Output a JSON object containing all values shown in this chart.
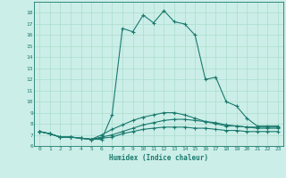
{
  "xlabel": "Humidex (Indice chaleur)",
  "ylabel": "",
  "bg_color": "#cceee8",
  "grid_color": "#aaddcc",
  "line_color": "#1a7a6e",
  "xlim": [
    -0.5,
    23.5
  ],
  "ylim": [
    6,
    19
  ],
  "xticks": [
    0,
    1,
    2,
    3,
    4,
    5,
    6,
    7,
    8,
    9,
    10,
    11,
    12,
    13,
    14,
    15,
    16,
    17,
    18,
    19,
    20,
    21,
    22,
    23
  ],
  "yticks": [
    6,
    7,
    8,
    9,
    10,
    11,
    12,
    13,
    14,
    15,
    16,
    17,
    18
  ],
  "lines": [
    {
      "x": [
        0,
        1,
        2,
        3,
        4,
        5,
        6,
        7,
        8,
        9,
        10,
        11,
        12,
        13,
        14,
        15,
        16,
        17,
        18,
        19,
        20,
        21,
        22,
        23
      ],
      "y": [
        7.3,
        7.1,
        6.8,
        6.8,
        6.7,
        6.6,
        6.6,
        8.8,
        16.6,
        16.3,
        17.8,
        17.1,
        18.2,
        17.2,
        17.0,
        16.0,
        12.0,
        12.2,
        10.0,
        9.6,
        8.5,
        7.8,
        7.8,
        7.8
      ]
    },
    {
      "x": [
        0,
        1,
        2,
        3,
        4,
        5,
        6,
        7,
        8,
        9,
        10,
        11,
        12,
        13,
        14,
        15,
        16,
        17,
        18,
        19,
        20,
        21,
        22,
        23
      ],
      "y": [
        7.3,
        7.1,
        6.8,
        6.8,
        6.7,
        6.6,
        7.0,
        7.5,
        7.9,
        8.3,
        8.6,
        8.8,
        9.0,
        9.0,
        8.8,
        8.5,
        8.2,
        8.0,
        7.8,
        7.8,
        7.7,
        7.7,
        7.7,
        7.7
      ]
    },
    {
      "x": [
        0,
        1,
        2,
        3,
        4,
        5,
        6,
        7,
        8,
        9,
        10,
        11,
        12,
        13,
        14,
        15,
        16,
        17,
        18,
        19,
        20,
        21,
        22,
        23
      ],
      "y": [
        7.3,
        7.1,
        6.8,
        6.8,
        6.7,
        6.6,
        6.8,
        7.0,
        7.3,
        7.6,
        7.9,
        8.1,
        8.3,
        8.4,
        8.4,
        8.3,
        8.2,
        8.1,
        7.9,
        7.8,
        7.7,
        7.6,
        7.6,
        7.6
      ]
    },
    {
      "x": [
        0,
        1,
        2,
        3,
        4,
        5,
        6,
        7,
        8,
        9,
        10,
        11,
        12,
        13,
        14,
        15,
        16,
        17,
        18,
        19,
        20,
        21,
        22,
        23
      ],
      "y": [
        7.3,
        7.1,
        6.8,
        6.8,
        6.7,
        6.6,
        6.7,
        6.8,
        7.1,
        7.3,
        7.5,
        7.6,
        7.7,
        7.7,
        7.7,
        7.6,
        7.6,
        7.5,
        7.4,
        7.4,
        7.3,
        7.3,
        7.3,
        7.3
      ]
    }
  ]
}
